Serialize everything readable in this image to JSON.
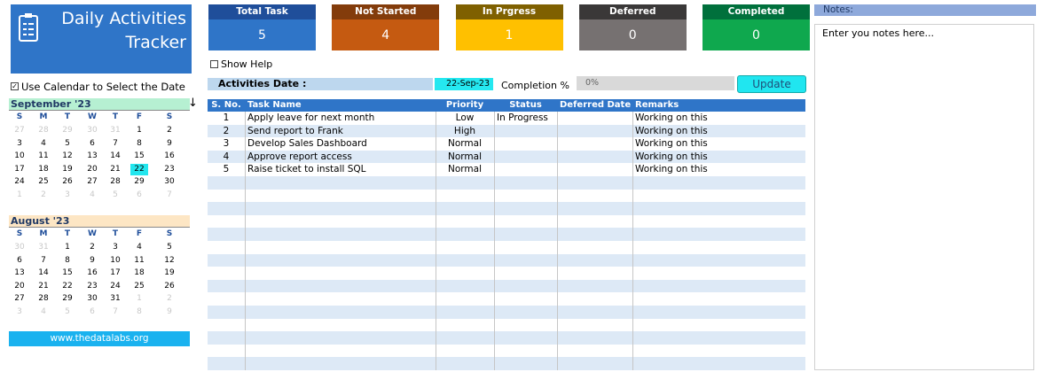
{
  "header": {
    "title_line1": "Daily Activities",
    "title_line2": "Tracker"
  },
  "cards": [
    {
      "label": "Total Task",
      "value": 5,
      "color": "#2f75c8",
      "header_color": "#1f4e9a"
    },
    {
      "label": "Not Started",
      "value": 4,
      "color": "#c55a11",
      "header_color": "#833c0b"
    },
    {
      "label": "In Prgress",
      "value": 1,
      "color": "#ffc000",
      "header_color": "#7f6000"
    },
    {
      "label": "Deferred",
      "value": 0,
      "color": "#767171",
      "header_color": "#3a3838"
    },
    {
      "label": "Completed",
      "value": 0,
      "color": "#0fa84e",
      "header_color": "#00703c"
    }
  ],
  "notes": {
    "title": "Notes:",
    "placeholder": "Enter you notes here..."
  },
  "controls": {
    "show_help": "Show Help",
    "use_calendar": "Use Calendar to Select the Date",
    "activities_date_label": "Activities Date :",
    "activities_date": "22-Sep-23",
    "completion_label": "Completion %",
    "completion": "0%",
    "update_button": "Update"
  },
  "calendars": [
    {
      "title": "September '23",
      "header_color": "#b6f0d2",
      "selected_day": 22,
      "weekdays": [
        "S",
        "M",
        "T",
        "W",
        "T",
        "F",
        "S"
      ],
      "weeks": [
        [
          27,
          28,
          29,
          30,
          31,
          1,
          2
        ],
        [
          3,
          4,
          5,
          6,
          7,
          8,
          9
        ],
        [
          10,
          11,
          12,
          13,
          14,
          15,
          16
        ],
        [
          17,
          18,
          19,
          20,
          21,
          22,
          23
        ],
        [
          24,
          25,
          26,
          27,
          28,
          29,
          30
        ],
        [
          1,
          2,
          3,
          4,
          5,
          6,
          7
        ]
      ]
    },
    {
      "title": "August '23",
      "header_color": "#fde6c4",
      "weekdays": [
        "S",
        "M",
        "T",
        "W",
        "T",
        "F",
        "S"
      ],
      "weeks": [
        [
          30,
          31,
          1,
          2,
          3,
          4,
          5
        ],
        [
          6,
          7,
          8,
          9,
          10,
          11,
          12
        ],
        [
          13,
          14,
          15,
          16,
          17,
          18,
          19
        ],
        [
          20,
          21,
          22,
          23,
          24,
          25,
          26
        ],
        [
          27,
          28,
          29,
          30,
          31,
          1,
          2
        ],
        [
          3,
          4,
          5,
          6,
          7,
          8,
          9
        ]
      ]
    }
  ],
  "footer": {
    "link": "www.thedatalabs.org"
  },
  "table": {
    "columns": [
      "S. No.",
      "Task Name",
      "Priority",
      "Status",
      "Deferred Date",
      "Remarks"
    ],
    "rows": [
      [
        1,
        "Apply leave for next month",
        "Low",
        "In Progress",
        null,
        "Working on this"
      ],
      [
        2,
        "Send report to Frank",
        "High",
        null,
        null,
        "Working on this"
      ],
      [
        3,
        "Develop Sales Dashboard",
        "Normal",
        null,
        null,
        "Working on this"
      ],
      [
        4,
        "Approve report access",
        "Normal",
        null,
        null,
        "Working on this"
      ],
      [
        5,
        "Raise ticket to install SQL",
        "Normal",
        null,
        null,
        "Working on this"
      ]
    ]
  }
}
